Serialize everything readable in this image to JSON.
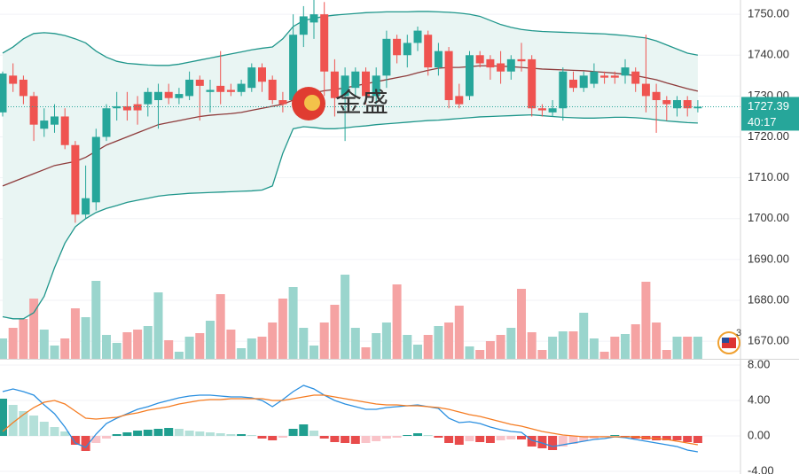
{
  "chart_data": [
    {
      "type": "candlestick",
      "open": [
        1726,
        1735,
        1734,
        1730,
        1722,
        1723,
        1725,
        1718,
        1701,
        1704,
        1720,
        1727,
        1727.5,
        1728,
        1728,
        1729,
        1731,
        1729.5,
        1730,
        1734,
        1731,
        1732.5,
        1731.5,
        1731,
        1732,
        1737,
        1734,
        1729,
        1729,
        1745,
        1748,
        1750,
        1736,
        1730,
        1732,
        1736,
        1730,
        1735,
        1744,
        1740,
        1743,
        1745,
        1737,
        1741,
        1730,
        1730,
        1740,
        1739,
        1738,
        1736,
        1739,
        1739,
        1727,
        1726,
        1727,
        1734,
        1732,
        1733,
        1735,
        1735,
        1735,
        1736,
        1733,
        1731,
        1729,
        1727,
        1729,
        1727
      ],
      "high": [
        1736,
        1738,
        1735,
        1731,
        1727,
        1728,
        1727,
        1719,
        1713,
        1722,
        1728,
        1731,
        1731,
        1730,
        1732,
        1733,
        1733,
        1732,
        1736,
        1735,
        1734,
        1741,
        1733,
        1734,
        1738,
        1738,
        1735,
        1731,
        1750,
        1752,
        1754,
        1753,
        1739,
        1737,
        1737,
        1737,
        1737,
        1746,
        1745,
        1745,
        1747,
        1746,
        1743,
        1742,
        1733,
        1741,
        1741,
        1740,
        1741,
        1740,
        1743,
        1740,
        1728,
        1729,
        1737,
        1736,
        1736,
        1738,
        1736,
        1736,
        1739,
        1737,
        1745,
        1733,
        1730,
        1730,
        1730,
        1729
      ],
      "low": [
        1725,
        1731,
        1728,
        1719,
        1720,
        1721,
        1717,
        1699,
        1700,
        1702,
        1719,
        1724,
        1724,
        1723,
        1725,
        1722,
        1728,
        1728,
        1729,
        1724,
        1726,
        1728,
        1730,
        1730,
        1731,
        1731,
        1728,
        1726,
        1727,
        1742,
        1744,
        1730,
        1725,
        1719,
        1730,
        1728,
        1728,
        1732,
        1738,
        1737,
        1741,
        1735,
        1735,
        1727,
        1727,
        1729,
        1737,
        1734,
        1733,
        1734,
        1736,
        1725,
        1725,
        1725,
        1724,
        1731,
        1731,
        1732,
        1733,
        1733,
        1733,
        1731,
        1726,
        1721,
        1724,
        1725,
        1725,
        1726
      ],
      "close": [
        1735.5,
        1733,
        1730,
        1723,
        1724,
        1725,
        1718,
        1701,
        1705,
        1720,
        1727,
        1727.5,
        1726.5,
        1726.5,
        1731,
        1731,
        1729.5,
        1730.5,
        1734,
        1732.5,
        1731.5,
        1731,
        1731,
        1733,
        1737,
        1733.5,
        1729,
        1728,
        1745,
        1749.5,
        1750,
        1736,
        1729.5,
        1735,
        1736,
        1730,
        1735,
        1744,
        1740,
        1743,
        1746,
        1737,
        1741,
        1729,
        1728,
        1740,
        1738,
        1737,
        1736,
        1739,
        1738.5,
        1727,
        1726.5,
        1727,
        1736,
        1732,
        1735,
        1736,
        1734.5,
        1734.5,
        1737,
        1733,
        1730,
        1729,
        1728,
        1729,
        1727,
        1727.39
      ],
      "volume": [
        23,
        35,
        45,
        68,
        33,
        15,
        23,
        57,
        47,
        88,
        27,
        18,
        30,
        33,
        37,
        75,
        21,
        8,
        25,
        29,
        43,
        73,
        33,
        12,
        23,
        25,
        41,
        68,
        81,
        35,
        15,
        41,
        61,
        95,
        35,
        13,
        29,
        41,
        84,
        27,
        16,
        27,
        37,
        41,
        60,
        14,
        10,
        20,
        27,
        35,
        79,
        30,
        10,
        25,
        31,
        31,
        52,
        23,
        8,
        25,
        28,
        39,
        87,
        41,
        10,
        25,
        25,
        25
      ],
      "bands": {
        "upper": [
          1740.5,
          1742,
          1744,
          1745.3,
          1745.5,
          1745.3,
          1744.8,
          1744,
          1743,
          1741,
          1739.5,
          1738.5,
          1738,
          1737.8,
          1737.6,
          1737.5,
          1737.5,
          1737.8,
          1738.3,
          1738.8,
          1739.3,
          1739.8,
          1740.3,
          1740.8,
          1741.3,
          1741.7,
          1742,
          1744,
          1747,
          1748.5,
          1749,
          1749.5,
          1749.8,
          1750,
          1750.2,
          1750.4,
          1750.5,
          1750.6,
          1750.6,
          1750.6,
          1750.7,
          1750.7,
          1750.6,
          1750.5,
          1750.3,
          1750,
          1749.5,
          1748.5,
          1747.5,
          1746.8,
          1746.3,
          1746,
          1745.8,
          1745.7,
          1745.6,
          1745.5,
          1745.4,
          1745.3,
          1745.2,
          1745,
          1744.8,
          1744.5,
          1744.2,
          1743.5,
          1742.5,
          1741.5,
          1740.5,
          1740
        ],
        "middle": [
          1708,
          1709,
          1710,
          1711,
          1712,
          1713,
          1713.5,
          1714,
          1715,
          1716.5,
          1718,
          1719,
          1720,
          1721,
          1722,
          1723,
          1723.5,
          1724,
          1724.5,
          1725,
          1725.3,
          1725.5,
          1725.7,
          1726,
          1726.5,
          1727,
          1727.5,
          1728,
          1729,
          1730,
          1730.8,
          1731.3,
          1731.6,
          1732,
          1732.5,
          1733,
          1733.5,
          1734,
          1734.5,
          1735,
          1735.7,
          1736.3,
          1736.8,
          1737,
          1737,
          1737.2,
          1737.4,
          1737.4,
          1737.3,
          1737.2,
          1737,
          1736.8,
          1736.6,
          1736.5,
          1736.4,
          1736.3,
          1736.2,
          1736,
          1735.8,
          1735.6,
          1735.3,
          1735,
          1734.5,
          1734,
          1733.2,
          1732.5,
          1731.8,
          1731.2
        ],
        "lower": [
          1676,
          1675.5,
          1675.5,
          1677,
          1681,
          1688,
          1694,
          1698,
          1700,
          1701.5,
          1702.5,
          1703.2,
          1704,
          1704.5,
          1705,
          1705.5,
          1705.8,
          1706,
          1706.2,
          1706.3,
          1706.4,
          1706.5,
          1706.6,
          1706.7,
          1706.8,
          1707,
          1708,
          1716,
          1722,
          1722.5,
          1722.3,
          1722,
          1722,
          1722.2,
          1722.5,
          1722.7,
          1723,
          1723.2,
          1723.4,
          1723.6,
          1723.8,
          1724,
          1724.1,
          1724.3,
          1724.5,
          1724.7,
          1724.9,
          1725,
          1725.1,
          1725.2,
          1725.3,
          1725.4,
          1725.2,
          1725,
          1724.8,
          1724.7,
          1724.6,
          1724.6,
          1724.7,
          1724.8,
          1724.8,
          1724.7,
          1724.5,
          1724.2,
          1723.9,
          1723.7,
          1723.5,
          1723.4
        ]
      },
      "ylim": [
        1665.7,
        1753.5
      ],
      "yticks": [
        {
          "value": 1750,
          "label": "1750.00"
        },
        {
          "value": 1740,
          "label": "1740.00"
        },
        {
          "value": 1730,
          "label": "1730.00"
        },
        {
          "value": 1720,
          "label": "1720.00"
        },
        {
          "value": 1710,
          "label": "1710.00"
        },
        {
          "value": 1700,
          "label": "1700.00"
        },
        {
          "value": 1690,
          "label": "1690.00"
        },
        {
          "value": 1680,
          "label": "1680.00"
        },
        {
          "value": 1670,
          "label": "1670.00"
        }
      ],
      "volume_lim": [
        0,
        100
      ],
      "grid": true,
      "last_price": 1727.39,
      "countdown": "40:17",
      "watermark": "金盛",
      "event_count": 3,
      "up_color": "#26a69a",
      "down_color": "#ef5350",
      "up_volume_color": "#9ad5cd",
      "down_volume_color": "#f5a3a3",
      "band_color": "#1f968b",
      "middle_color": "#8e3b3b",
      "band_fill": "#e9f5f3"
    },
    {
      "type": "macd",
      "histogram": [
        4.2,
        3.5,
        2.8,
        2.3,
        1.6,
        1.0,
        0.5,
        -1.0,
        -1.7,
        -0.8,
        -0.3,
        0.2,
        0.4,
        0.6,
        0.7,
        0.8,
        0.9,
        0.8,
        0.6,
        0.5,
        0.4,
        0.3,
        0.2,
        0.2,
        0.1,
        -0.3,
        -0.5,
        -0.2,
        0.8,
        1.3,
        0.6,
        -0.3,
        -0.7,
        -0.8,
        -0.9,
        -0.8,
        -0.6,
        -0.3,
        -0.2,
        0.1,
        0.3,
        0.1,
        -0.2,
        -0.8,
        -1.0,
        -0.6,
        -0.7,
        -0.8,
        -0.5,
        -0.4,
        -0.4,
        -1.2,
        -1.4,
        -1.6,
        -1.2,
        -0.9,
        -0.6,
        -0.3,
        -0.1,
        0.1,
        -0.1,
        -0.3,
        -0.4,
        -0.5,
        -0.5,
        -0.5,
        -0.7,
        -0.8
      ],
      "macd": [
        5,
        5.3,
        5,
        4.6,
        3.5,
        2.5,
        1.0,
        -0.8,
        -1.3,
        0.2,
        1.4,
        2.0,
        2.5,
        3.0,
        3.3,
        3.7,
        4.0,
        4.3,
        4.5,
        4.6,
        4.6,
        4.5,
        4.4,
        4.4,
        4.3,
        4.0,
        3.3,
        4.1,
        5.0,
        5.7,
        5.3,
        4.6,
        4.0,
        3.6,
        3.3,
        3.0,
        3.0,
        3.2,
        3.3,
        3.4,
        3.5,
        3.3,
        3.1,
        2.0,
        1.5,
        1.6,
        1.4,
        1.0,
        0.7,
        0.5,
        0.4,
        -0.5,
        -0.8,
        -1.2,
        -1.0,
        -0.8,
        -0.6,
        -0.4,
        -0.3,
        -0.1,
        -0.2,
        -0.4,
        -0.6,
        -0.8,
        -1.0,
        -1.2,
        -1.6,
        -1.8
      ],
      "signal": [
        0.5,
        1.5,
        2.4,
        3.2,
        3.8,
        4.0,
        3.6,
        2.8,
        2.0,
        1.9,
        2.0,
        2.1,
        2.4,
        2.6,
        2.9,
        3.1,
        3.3,
        3.6,
        3.8,
        4.0,
        4.1,
        4.1,
        4.2,
        4.2,
        4.2,
        4.2,
        4.0,
        4.0,
        4.2,
        4.4,
        4.6,
        4.6,
        4.4,
        4.2,
        4.0,
        3.8,
        3.6,
        3.5,
        3.5,
        3.4,
        3.4,
        3.3,
        3.2,
        3.0,
        2.7,
        2.4,
        2.2,
        1.9,
        1.6,
        1.3,
        1.1,
        0.8,
        0.5,
        0.3,
        0.1,
        0,
        -0.1,
        -0.1,
        -0.1,
        -0.1,
        -0.1,
        -0.1,
        -0.2,
        -0.3,
        -0.4,
        -0.6,
        -0.8,
        -1.0
      ],
      "ylim": [
        -4.3,
        8.7
      ],
      "yticks": [
        {
          "value": 8,
          "label": "8.00"
        },
        {
          "value": 4,
          "label": "4.00"
        },
        {
          "value": 0,
          "label": "0.00"
        },
        {
          "value": -4,
          "label": "-4.00"
        }
      ],
      "macd_color": "#2a8fe0",
      "signal_color": "#f57c22",
      "hist_colors": [
        "#1f9e8f",
        "#b4e0d9",
        "#e84b4b",
        "#f9c3c8"
      ]
    }
  ]
}
